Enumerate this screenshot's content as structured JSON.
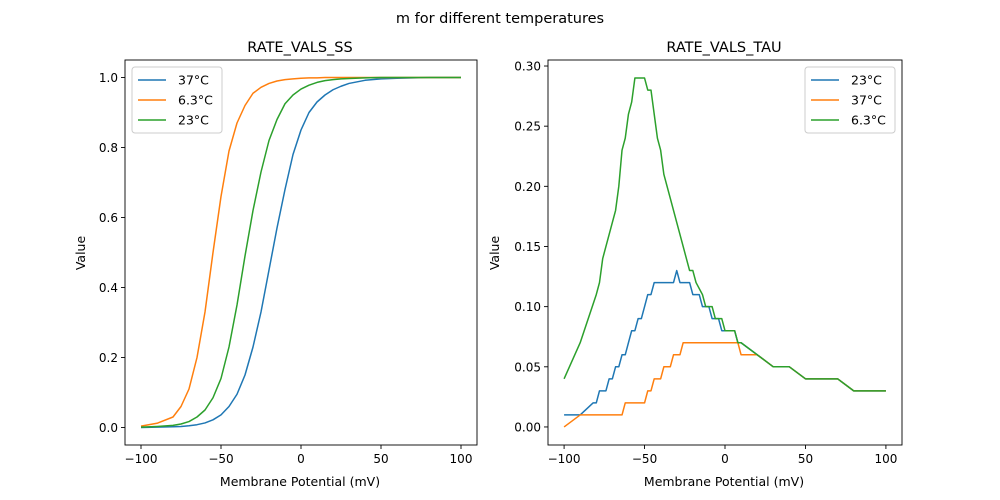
{
  "figure": {
    "suptitle": "m for different temperatures"
  },
  "chart_data": [
    {
      "type": "line",
      "title": "RATE_VALS_SS",
      "xlabel": "Membrane Potential (mV)",
      "ylabel": "Value",
      "xlim": [
        -110,
        110
      ],
      "ylim": [
        -0.05,
        1.05
      ],
      "xticks": [
        -100,
        -50,
        0,
        50,
        100
      ],
      "xtick_labels": [
        "−100",
        "−50",
        "0",
        "50",
        "100"
      ],
      "yticks": [
        0.0,
        0.2,
        0.4,
        0.6,
        0.8,
        1.0
      ],
      "ytick_labels": [
        "0.0",
        "0.2",
        "0.4",
        "0.6",
        "0.8",
        "1.0"
      ],
      "grid": false,
      "legend_position": "upper-left",
      "x": [
        -100,
        -90,
        -80,
        -75,
        -70,
        -65,
        -60,
        -55,
        -50,
        -45,
        -40,
        -35,
        -30,
        -25,
        -20,
        -15,
        -10,
        -5,
        0,
        5,
        10,
        15,
        20,
        25,
        30,
        40,
        50,
        60,
        70,
        80,
        90,
        100
      ],
      "series": [
        {
          "name": "37°C",
          "color": "#1f77b4",
          "values": [
            0.0,
            0.001,
            0.002,
            0.003,
            0.005,
            0.008,
            0.013,
            0.022,
            0.036,
            0.06,
            0.095,
            0.15,
            0.23,
            0.33,
            0.45,
            0.57,
            0.68,
            0.78,
            0.85,
            0.9,
            0.93,
            0.95,
            0.965,
            0.975,
            0.983,
            0.992,
            0.996,
            0.998,
            0.999,
            1.0,
            1.0,
            1.0
          ]
        },
        {
          "name": "6.3°C",
          "color": "#ff7f0e",
          "values": [
            0.004,
            0.012,
            0.03,
            0.06,
            0.11,
            0.2,
            0.33,
            0.5,
            0.66,
            0.79,
            0.87,
            0.92,
            0.955,
            0.972,
            0.983,
            0.99,
            0.994,
            0.996,
            0.998,
            0.999,
            0.999,
            1.0,
            1.0,
            1.0,
            1.0,
            1.0,
            1.0,
            1.0,
            1.0,
            1.0,
            1.0,
            1.0
          ]
        },
        {
          "name": "23°C",
          "color": "#2ca02c",
          "values": [
            0.001,
            0.003,
            0.006,
            0.01,
            0.017,
            0.03,
            0.05,
            0.085,
            0.14,
            0.23,
            0.35,
            0.49,
            0.62,
            0.73,
            0.82,
            0.88,
            0.925,
            0.95,
            0.967,
            0.978,
            0.986,
            0.991,
            0.994,
            0.996,
            0.997,
            0.999,
            1.0,
            1.0,
            1.0,
            1.0,
            1.0,
            1.0
          ]
        }
      ]
    },
    {
      "type": "line",
      "title": "RATE_VALS_TAU",
      "xlabel": "Membrane Potential (mV)",
      "ylabel": "Value",
      "xlim": [
        -110,
        110
      ],
      "ylim": [
        -0.015,
        0.305
      ],
      "xticks": [
        -100,
        -50,
        0,
        50,
        100
      ],
      "xtick_labels": [
        "−100",
        "−50",
        "0",
        "50",
        "100"
      ],
      "yticks": [
        0.0,
        0.05,
        0.1,
        0.15,
        0.2,
        0.25,
        0.3
      ],
      "ytick_labels": [
        "0.00",
        "0.05",
        "0.10",
        "0.15",
        "0.20",
        "0.25",
        "0.30"
      ],
      "grid": false,
      "legend_position": "upper-right",
      "series": [
        {
          "name": "23°C",
          "color": "#1f77b4",
          "x": [
            -100,
            -90,
            -82,
            -80,
            -78,
            -74,
            -72,
            -70,
            -68,
            -66,
            -64,
            -62,
            -60,
            -58,
            -56,
            -54,
            -52,
            -50,
            -48,
            -46,
            -44,
            -40,
            -38,
            -32,
            -30,
            -28,
            -22,
            -20,
            -16,
            -14,
            -10,
            -8,
            -4,
            -2,
            0,
            6,
            8,
            10,
            20,
            30,
            40,
            50,
            70,
            80,
            100
          ],
          "values": [
            0.01,
            0.01,
            0.02,
            0.02,
            0.03,
            0.03,
            0.04,
            0.04,
            0.05,
            0.05,
            0.06,
            0.06,
            0.07,
            0.08,
            0.08,
            0.09,
            0.09,
            0.1,
            0.11,
            0.11,
            0.12,
            0.12,
            0.12,
            0.12,
            0.13,
            0.12,
            0.12,
            0.11,
            0.11,
            0.1,
            0.1,
            0.09,
            0.09,
            0.08,
            0.08,
            0.08,
            0.07,
            0.07,
            0.06,
            0.05,
            0.05,
            0.04,
            0.04,
            0.03,
            0.03
          ]
        },
        {
          "name": "37°C",
          "color": "#ff7f0e",
          "x": [
            -100,
            -90,
            -64,
            -62,
            -50,
            -48,
            -46,
            -44,
            -40,
            -38,
            -34,
            -32,
            -28,
            -26,
            -22,
            -20,
            8,
            10,
            20,
            30,
            40,
            50,
            70,
            80,
            100
          ],
          "values": [
            0.0,
            0.01,
            0.01,
            0.02,
            0.02,
            0.03,
            0.03,
            0.04,
            0.04,
            0.05,
            0.05,
            0.06,
            0.06,
            0.07,
            0.07,
            0.07,
            0.07,
            0.06,
            0.06,
            0.05,
            0.05,
            0.04,
            0.04,
            0.03,
            0.03
          ]
        },
        {
          "name": "6.3°C",
          "color": "#2ca02c",
          "x": [
            -100,
            -90,
            -80,
            -78,
            -76,
            -74,
            -72,
            -70,
            -68,
            -66,
            -64,
            -62,
            -60,
            -58,
            -56,
            -50,
            -48,
            -46,
            -44,
            -42,
            -40,
            -38,
            -36,
            -34,
            -30,
            -26,
            -22,
            -20,
            -18,
            -14,
            -12,
            -8,
            -6,
            -2,
            0,
            6,
            8,
            10,
            20,
            30,
            40,
            50,
            70,
            80,
            100
          ],
          "values": [
            0.04,
            0.07,
            0.11,
            0.12,
            0.14,
            0.15,
            0.16,
            0.17,
            0.18,
            0.2,
            0.23,
            0.24,
            0.26,
            0.27,
            0.29,
            0.29,
            0.28,
            0.28,
            0.26,
            0.24,
            0.23,
            0.21,
            0.2,
            0.19,
            0.17,
            0.15,
            0.13,
            0.13,
            0.12,
            0.11,
            0.1,
            0.1,
            0.09,
            0.09,
            0.08,
            0.08,
            0.07,
            0.07,
            0.06,
            0.05,
            0.05,
            0.04,
            0.04,
            0.03,
            0.03
          ]
        }
      ]
    }
  ]
}
